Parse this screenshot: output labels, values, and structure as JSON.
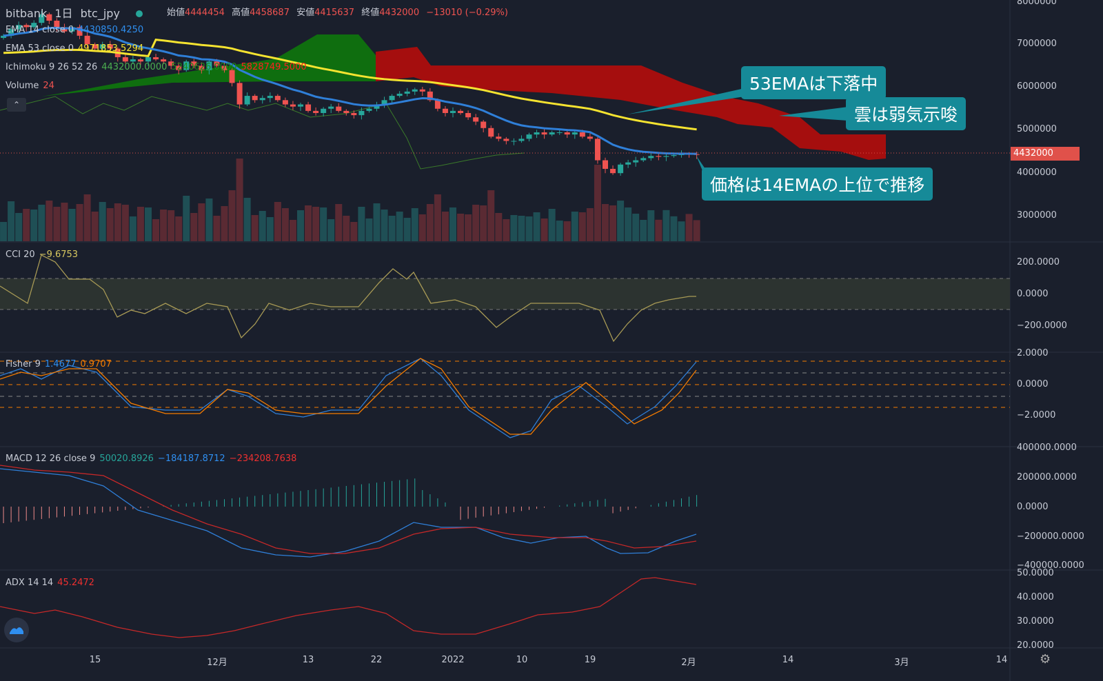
{
  "header": {
    "exchange": "bitbank",
    "interval": "1日",
    "symbol": "btc_jpy",
    "ohlc": [
      {
        "label": "始値",
        "value": "4444454"
      },
      {
        "label": "高値",
        "value": "4458687"
      },
      {
        "label": "安値",
        "value": "4415637"
      },
      {
        "label": "終値",
        "value": "4432000"
      }
    ],
    "change": "−13010 (−0.29%)"
  },
  "legends": {
    "ema14": {
      "label": "EMA 14 close 0",
      "value": "4430850.4250"
    },
    "ema53": {
      "label": "EMA 53 close 0",
      "value": "4971853.5294"
    },
    "ichimoku": {
      "label": "Ichimoku 9 26 52 26",
      "v1": "4432000.0000",
      "v2": "5240626.0000",
      "v3": "5828749.5000"
    },
    "volume": {
      "label": "Volume",
      "value": "24"
    },
    "cci": {
      "label": "CCI 20",
      "value": "−9.6753"
    },
    "fisher": {
      "label": "Fisher 9",
      "v1": "1.4677",
      "v2": "0.9707"
    },
    "macd": {
      "label": "MACD 12 26 close 9",
      "v1": "50020.8926",
      "v2": "−184187.8712",
      "v3": "−234208.7638"
    },
    "adx": {
      "label": "ADX 14 14",
      "value": "45.2472"
    }
  },
  "price_axis": [
    "8000000",
    "7000000",
    "6000000",
    "5000000",
    "4000000",
    "3000000"
  ],
  "current_price": "4432000",
  "cci_axis": [
    "200.0000",
    "0.0000",
    "−200.0000"
  ],
  "fisher_axis": [
    "2.0000",
    "0.0000",
    "−2.0000"
  ],
  "macd_axis": [
    "400000.0000",
    "200000.0000",
    "0.0000",
    "−200000.0000",
    "−400000.0000"
  ],
  "adx_axis": [
    "50.0000",
    "40.0000",
    "30.0000",
    "20.0000"
  ],
  "time_axis": [
    "15",
    "12月",
    "13",
    "22",
    "2022",
    "10",
    "19",
    "2月",
    "14",
    "3月",
    "14"
  ],
  "annotations": [
    "53EMAは下落中",
    "雲は弱気示唆",
    "価格は14EMAの上位で推移"
  ],
  "collapse_icon": "chevron-up-icon",
  "colors": {
    "up": "#26a69a",
    "down": "#ef5350",
    "ema14": "#2f7fd8",
    "ema53": "#f5e330",
    "callout": "#168a98"
  },
  "closes_10k_jpy": [
    720,
    735,
    745,
    740,
    750,
    770,
    755,
    740,
    730,
    740,
    720,
    700,
    690,
    700,
    690,
    670,
    660,
    665,
    660,
    670,
    665,
    660,
    650,
    640,
    660,
    650,
    640,
    660,
    650,
    640,
    610,
    560,
    580,
    570,
    575,
    580,
    570,
    560,
    555,
    560,
    545,
    540,
    550,
    555,
    545,
    540,
    535,
    545,
    550,
    560,
    570,
    580,
    585,
    590,
    595,
    590,
    570,
    550,
    540,
    545,
    540,
    530,
    520,
    505,
    485,
    480,
    475,
    475,
    480,
    490,
    495,
    490,
    495,
    495,
    490,
    495,
    485,
    480,
    430,
    410,
    400,
    420,
    425,
    430,
    435,
    440,
    438,
    440,
    442,
    445,
    444,
    443
  ]
}
